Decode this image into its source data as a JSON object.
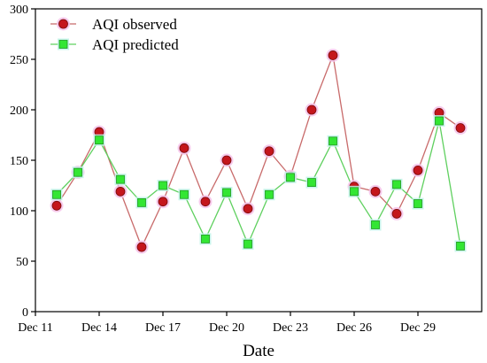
{
  "chart_data": {
    "type": "line",
    "title": "",
    "xlabel": "Date",
    "ylabel": "",
    "x": [
      "Dec 12",
      "Dec 13",
      "Dec 14",
      "Dec 15",
      "Dec 16",
      "Dec 17",
      "Dec 18",
      "Dec 19",
      "Dec 20",
      "Dec 21",
      "Dec 22",
      "Dec 23",
      "Dec 24",
      "Dec 25",
      "Dec 26",
      "Dec 27",
      "Dec 28",
      "Dec 29",
      "Dec 30",
      "Dec 31"
    ],
    "xticks": [
      "Dec 11",
      "Dec 14",
      "Dec 17",
      "Dec 20",
      "Dec 23",
      "Dec 26",
      "Dec 29"
    ],
    "xlim": [
      "Dec 11",
      "Jan 1"
    ],
    "yticks": [
      0,
      50,
      100,
      150,
      200,
      250,
      300
    ],
    "ylim": [
      0,
      300
    ],
    "grid": false,
    "legend": "top-left",
    "series": [
      {
        "name": "AQI observed",
        "marker": "circle",
        "line_color": "#c86a6a",
        "marker_color": "#c4161c",
        "marker_edge": "#7a0a0a",
        "halo_color": "#f6c2ea",
        "values": [
          105,
          138,
          178,
          119,
          64,
          109,
          162,
          109,
          150,
          102,
          159,
          134,
          200,
          254,
          124,
          119,
          97,
          140,
          197,
          182
        ]
      },
      {
        "name": "AQI predicted",
        "marker": "square",
        "line_color": "#5fd05f",
        "marker_color": "#33e633",
        "marker_edge": "#1f9a1f",
        "halo_color": "#bff3e8",
        "values": [
          116,
          138,
          170,
          131,
          108,
          125,
          116,
          72,
          118,
          67,
          116,
          133,
          128,
          169,
          119,
          86,
          126,
          107,
          189,
          65
        ]
      }
    ]
  }
}
